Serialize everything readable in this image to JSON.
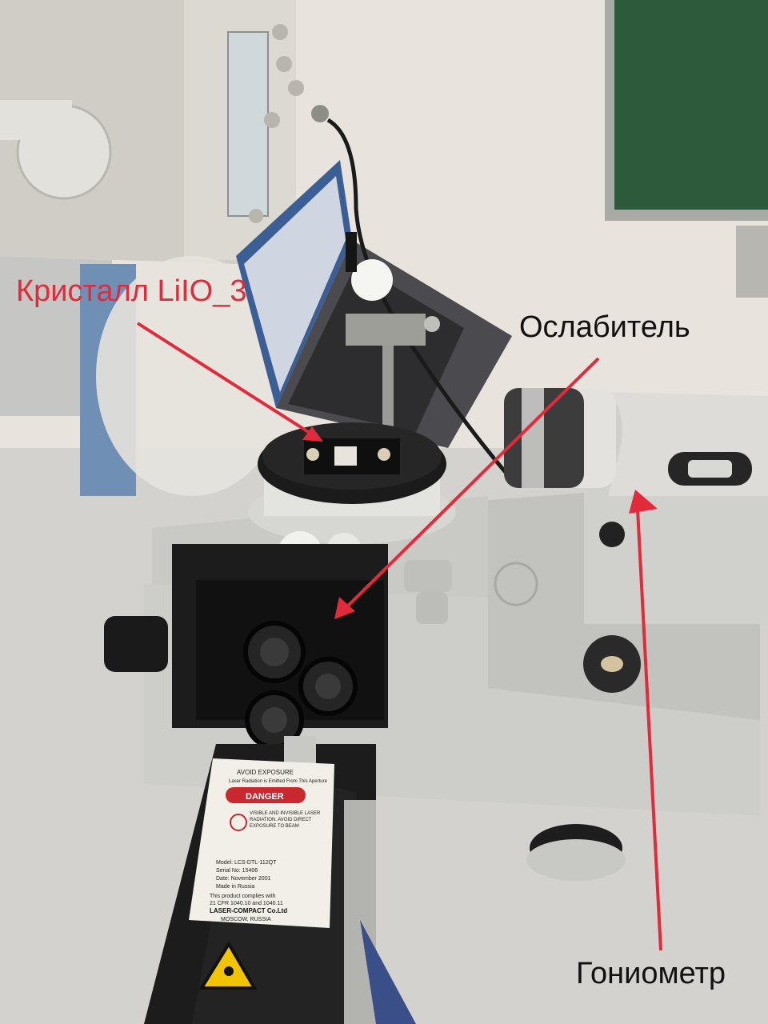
{
  "annotations": {
    "crystal_label": "Кристалл LiIO_3",
    "attenuator_label": "Ослабитель",
    "goniometer_label": "Гониометр"
  },
  "laser_plate": {
    "avoid_exposure": "AVOID EXPOSURE",
    "emitted": "Laser Radiation is Emitted From This Aperture",
    "danger": "DANGER",
    "warning_1": "VISIBLE AND INVISIBLE LASER",
    "warning_2": "RADIATION. AVOID DIRECT",
    "warning_3": "EXPOSURE TO BEAM",
    "model": "Model: LCS-DTL-112QT",
    "serial": "Serial No: 15406",
    "date": "Date: November 2001",
    "made_in": "Made in Russia",
    "complies_1": "This product complies with",
    "complies_2": "21 CFR 1040.10 and 1040.11",
    "maker": "LASER-COMPACT Co.Ltd",
    "city": "MOSCOW, RUSSIA"
  },
  "colors": {
    "annotation_red": "#e22a3a",
    "annotation_text": "#111111",
    "board_green": "#2e5a3c",
    "equipment_gray": "#cfcfcb",
    "danger_red": "#c8282e",
    "warning_yellow": "#f2c400"
  }
}
